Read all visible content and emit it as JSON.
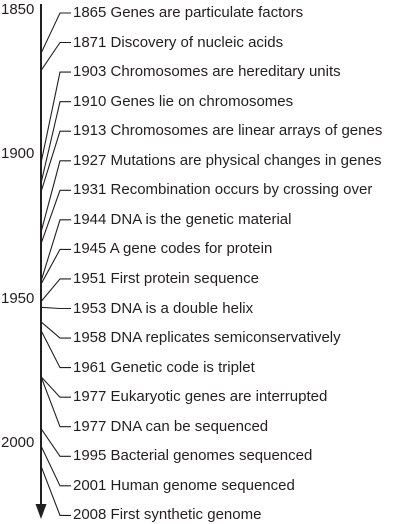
{
  "axis": {
    "start_year": 1850,
    "end_year": 2010,
    "ticks": [
      "1850",
      "1900",
      "1950",
      "2000"
    ],
    "line_color": "#231f20"
  },
  "events": [
    {
      "year": 1865,
      "label": "1865 Genes are particulate factors"
    },
    {
      "year": 1871,
      "label": "1871 Discovery of nucleic acids"
    },
    {
      "year": 1903,
      "label": "1903 Chromosomes are hereditary units"
    },
    {
      "year": 1910,
      "label": "1910 Genes lie on chromosomes"
    },
    {
      "year": 1913,
      "label": "1913 Chromosomes are linear arrays of genes"
    },
    {
      "year": 1927,
      "label": "1927 Mutations are physical changes in genes"
    },
    {
      "year": 1931,
      "label": "1931 Recombination occurs by crossing over"
    },
    {
      "year": 1944,
      "label": "1944 DNA is the genetic material"
    },
    {
      "year": 1945,
      "label": "1945 A gene codes for protein"
    },
    {
      "year": 1951,
      "label": "1951 First protein sequence"
    },
    {
      "year": 1953,
      "label": "1953 DNA is a double helix"
    },
    {
      "year": 1958,
      "label": "1958 DNA replicates semiconservatively"
    },
    {
      "year": 1961,
      "label": "1961 Genetic code is triplet"
    },
    {
      "year": 1977,
      "label": "1977 Eukaryotic genes are interrupted"
    },
    {
      "year": 1977,
      "label": "1977 DNA can be sequenced"
    },
    {
      "year": 1995,
      "label": "1995 Bacterial genomes sequenced"
    },
    {
      "year": 2001,
      "label": "2001 Human genome sequenced"
    },
    {
      "year": 2008,
      "label": "2008 First synthetic genome"
    }
  ]
}
